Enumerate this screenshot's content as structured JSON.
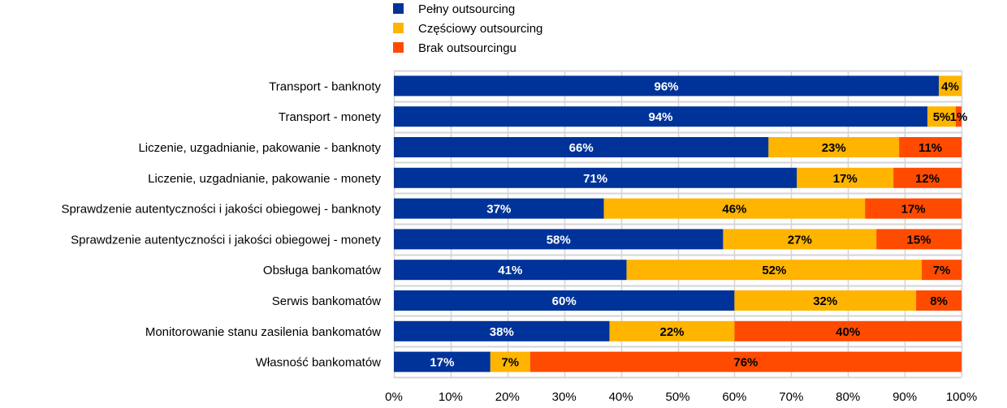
{
  "chart_data": {
    "type": "bar",
    "orientation": "horizontal",
    "stacked": "percent",
    "title": "",
    "xlabel": "",
    "ylabel": "",
    "xlim": [
      0,
      100
    ],
    "x_ticks": [
      "0%",
      "10%",
      "20%",
      "30%",
      "40%",
      "50%",
      "60%",
      "70%",
      "80%",
      "90%",
      "100%"
    ],
    "grid": true,
    "legend_position": "top",
    "categories": [
      "Transport - banknoty",
      "Transport - monety",
      "Liczenie, uzgadnianie, pakowanie - banknoty",
      "Liczenie, uzgadnianie, pakowanie - monety",
      "Sprawdzenie autentyczności i jakości obiegowej - banknoty",
      "Sprawdzenie autentyczności i jakości obiegowej - monety",
      "Obsługa bankomatów",
      "Serwis bankomatów",
      "Monitorowanie stanu zasilenia bankomatów",
      "Własność bankomatów"
    ],
    "series": [
      {
        "name": "Pełny outsourcing",
        "color": "#003399",
        "label_color": "#ffffff",
        "values": [
          96,
          94,
          66,
          71,
          37,
          58,
          41,
          60,
          38,
          17
        ]
      },
      {
        "name": "Częściowy outsourcing",
        "color": "#FFB400",
        "label_color": "#000000",
        "values": [
          4,
          5,
          23,
          17,
          46,
          27,
          52,
          32,
          22,
          7
        ]
      },
      {
        "name": "Brak outsourcingu",
        "color": "#FF4B00",
        "label_color": "#000000",
        "values": [
          0,
          1,
          11,
          12,
          17,
          15,
          7,
          8,
          40,
          76
        ]
      }
    ],
    "data_labels": [
      [
        "96%",
        "4%",
        null
      ],
      [
        "94%",
        "5%",
        "1%"
      ],
      [
        "66%",
        "23%",
        "11%"
      ],
      [
        "71%",
        "17%",
        "12%"
      ],
      [
        "37%",
        "46%",
        "17%"
      ],
      [
        "58%",
        "27%",
        "15%"
      ],
      [
        "41%",
        "52%",
        "7%"
      ],
      [
        "60%",
        "32%",
        "8%"
      ],
      [
        "38%",
        "22%",
        "40%"
      ],
      [
        "17%",
        "7%",
        "76%"
      ]
    ]
  }
}
